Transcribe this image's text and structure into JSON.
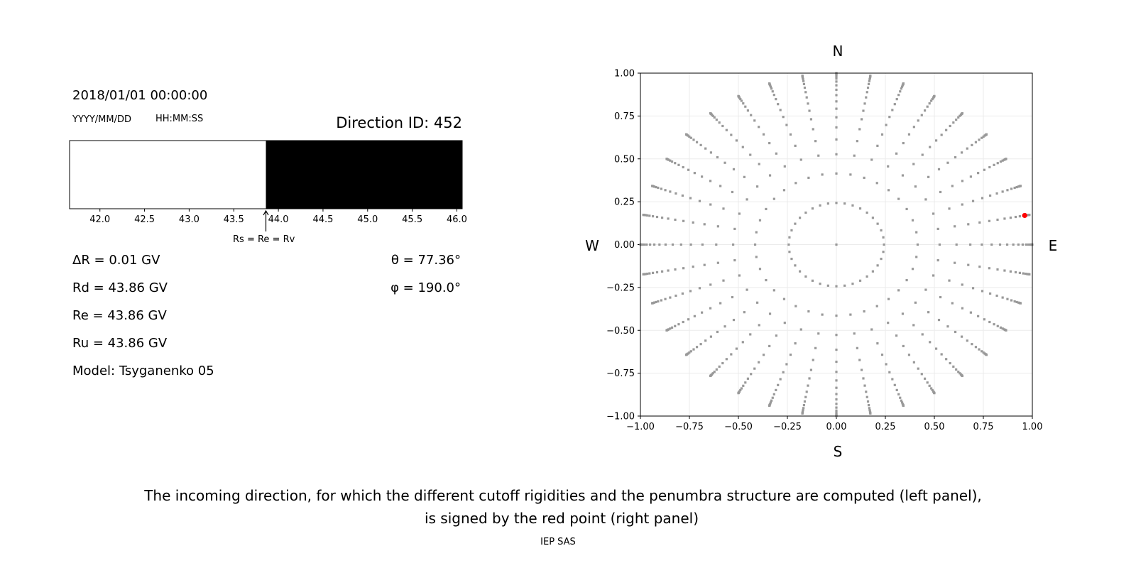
{
  "left_panel": {
    "datetime": "2018/01/01 00:00:00",
    "date_format": "YYYY/MM/DD",
    "time_format": "HH:MM:SS",
    "direction_id": "Direction ID: 452",
    "arrow_label": "Rs = Re = Rv",
    "params_left": [
      "ΔR = 0.01 GV",
      "Rd = 43.86 GV",
      "Re = 43.86 GV",
      "Ru = 43.86 GV",
      "Model: Tsyganenko 05"
    ],
    "params_right": [
      "θ = 77.36°",
      "φ = 190.0°"
    ]
  },
  "caption": {
    "line1": "The incoming direction, for which the different cutoff rigidities and the penumbra structure are computed (left panel),",
    "line2": "is signed by the red point (right panel)",
    "credit": "IEP SAS"
  },
  "chart_data": [
    {
      "type": "bar",
      "description_kind": "penumbra strip",
      "xlim": [
        41.66,
        46.06
      ],
      "xticks": [
        "42.0",
        "42.5",
        "43.0",
        "43.5",
        "44.0",
        "44.5",
        "45.0",
        "45.5",
        "46.0"
      ],
      "segments": [
        {
          "from": 41.66,
          "to": 43.86,
          "color": "#ffffff"
        },
        {
          "from": 43.86,
          "to": 46.06,
          "color": "#000000"
        }
      ],
      "arrow_at": 43.86
    },
    {
      "type": "scatter",
      "xlim": [
        -1,
        1
      ],
      "ylim": [
        -1,
        1
      ],
      "xticks": [
        "−1.00",
        "−0.75",
        "−0.50",
        "−0.25",
        "0.00",
        "0.25",
        "0.50",
        "0.75",
        "1.00"
      ],
      "yticks": [
        "1.00",
        "0.75",
        "0.50",
        "0.25",
        "0.00",
        "−0.25",
        "−0.50",
        "−0.75",
        "−1.00"
      ],
      "grid": true,
      "compass": {
        "north": "N",
        "south": "S",
        "west": "W",
        "east": "E"
      },
      "grid_points": {
        "azimuth_step_deg": 10,
        "cos_zenith": [
          1.0,
          0.97,
          0.91,
          0.85,
          0.79,
          0.73,
          0.67,
          0.61,
          0.55,
          0.49,
          0.43,
          0.37,
          0.31,
          0.25,
          0.2,
          0.15,
          0.11,
          0.07,
          0.04,
          0.01
        ],
        "color": "#999999"
      },
      "selected_point": {
        "x": 0.961,
        "y": 0.17,
        "color": "#ff0000"
      }
    }
  ]
}
